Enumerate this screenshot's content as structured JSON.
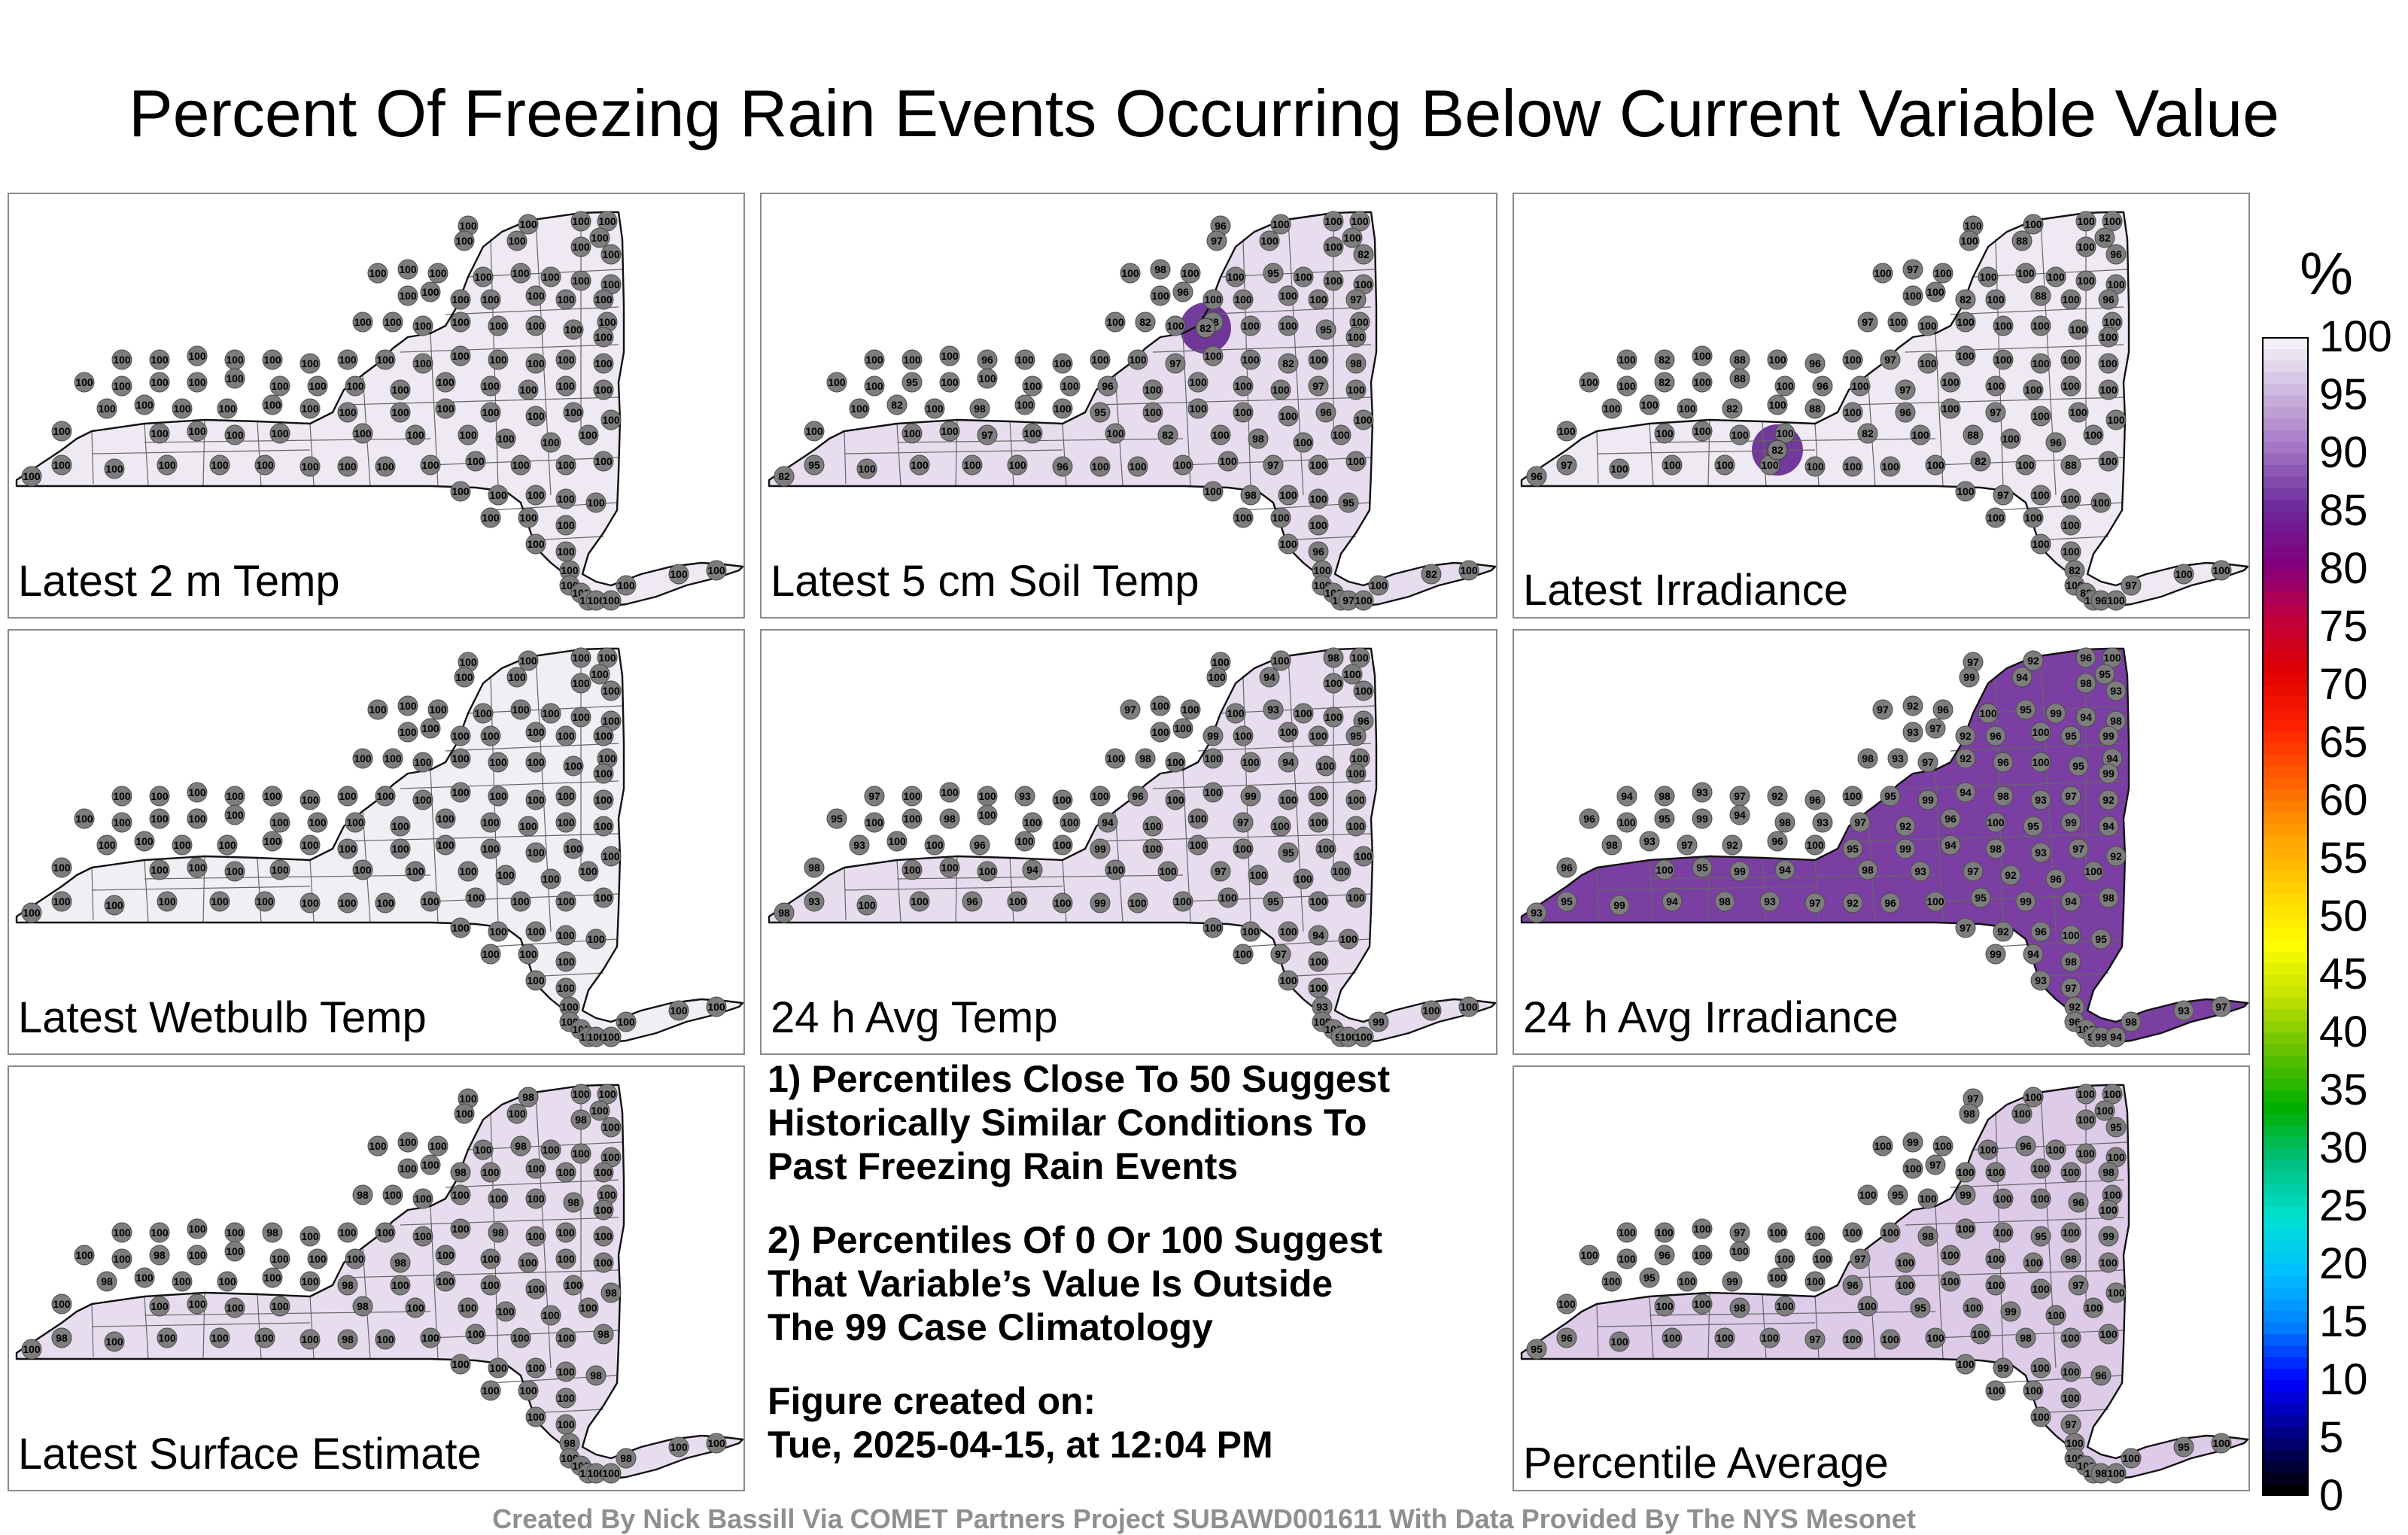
{
  "title": "Percent Of Freezing Rain Events Occurring Below Current Variable Value",
  "panels": [
    {
      "label": "Latest 2 m Temp",
      "shade": "#efe9f3",
      "hotspots": [],
      "values": [
        "100"
      ]
    },
    {
      "label": "Latest 5 cm Soil Temp",
      "shade": "#e8ddef",
      "hotspots": [
        {
          "value": "82"
        }
      ],
      "values": [
        "100",
        "98",
        "97",
        "96",
        "95",
        "82"
      ]
    },
    {
      "label": "Latest Irradiance",
      "shade": "#efe9f3",
      "hotspots": [
        {
          "value": "82"
        }
      ],
      "values": [
        "100",
        "97",
        "96",
        "88",
        "82"
      ]
    },
    {
      "label": "Latest Wetbulb Temp",
      "shade": "#f2eef5",
      "hotspots": [],
      "values": [
        "100"
      ]
    },
    {
      "label": "24 h Avg Temp",
      "shade": "#e8ddef",
      "hotspots": [],
      "values": [
        "100",
        "99",
        "98",
        "97",
        "96",
        "95",
        "94",
        "93"
      ]
    },
    {
      "label": "24 h Avg Irradiance",
      "shade": "#7b3fa3",
      "hotspots": [],
      "values": [
        "100",
        "99",
        "98",
        "97",
        "96",
        "95",
        "94",
        "93",
        "92"
      ]
    },
    {
      "label": "Latest Surface Estimate",
      "shade": "#e8ddef",
      "hotspots": [],
      "values": [
        "100",
        "98"
      ]
    },
    {
      "label": "Percentile Average",
      "shade": "#ddcbe8",
      "hotspots": [],
      "values": [
        "100",
        "99",
        "98",
        "97",
        "96",
        "95"
      ]
    }
  ],
  "notes": [
    "1) Percentiles Close To 50 Suggest\nHistorically Similar Conditions To\nPast Freezing Rain Events",
    "2) Percentiles Of 0 Or 100 Suggest\nThat Variable’s Value Is Outside\nThe 99 Case Climatology",
    "Figure created on:\nTue, 2025-04-15, at 12:04 PM"
  ],
  "colorbar": {
    "unit": "%",
    "ticks": [
      "100",
      "95",
      "90",
      "85",
      "80",
      "75",
      "70",
      "65",
      "60",
      "55",
      "50",
      "45",
      "40",
      "35",
      "30",
      "25",
      "20",
      "15",
      "10",
      "5",
      "0"
    ],
    "colors": [
      "#000000",
      "#000080",
      "#0000ff",
      "#0080ff",
      "#00c0ff",
      "#00e0d0",
      "#00c080",
      "#00b000",
      "#60c000",
      "#c0e000",
      "#ffff00",
      "#ffd000",
      "#ffa000",
      "#ff6000",
      "#ff2000",
      "#e00000",
      "#c00040",
      "#800080",
      "#6a2a9a",
      "#a070c0",
      "#c8b0dc",
      "#f5f0f8"
    ]
  },
  "credit": "Created By Nick Bassill Via COMET Partners Project SUBAWD001611 With Data Provided By The NYS Mesonet"
}
